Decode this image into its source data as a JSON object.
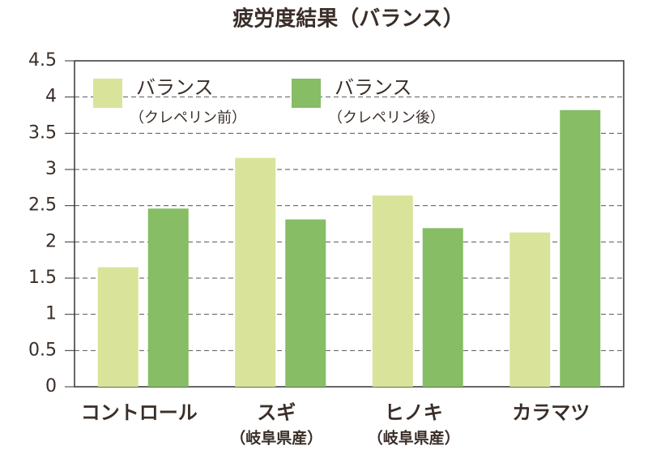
{
  "chart_data": {
    "type": "bar",
    "title": "疲労度結果（バランス）",
    "categories": [
      "コントロール",
      "スギ",
      "ヒノキ",
      "カラマツ"
    ],
    "category_notes": [
      null,
      "（岐阜県産）",
      "（岐阜県産）",
      null
    ],
    "series": [
      {
        "name": "バランス",
        "note": "（クレペリン前）",
        "color": "#d9e49a",
        "values": [
          1.65,
          3.16,
          2.64,
          2.13
        ]
      },
      {
        "name": "バランス",
        "note": "（クレペリン後）",
        "color": "#86bd65",
        "values": [
          2.46,
          2.31,
          2.19,
          3.82
        ]
      }
    ],
    "ylim": [
      0,
      4.5
    ],
    "yticks": [
      0,
      0.5,
      1,
      1.5,
      2,
      2.5,
      3,
      3.5,
      4,
      4.5
    ],
    "grid": true,
    "legend": "top-left"
  }
}
